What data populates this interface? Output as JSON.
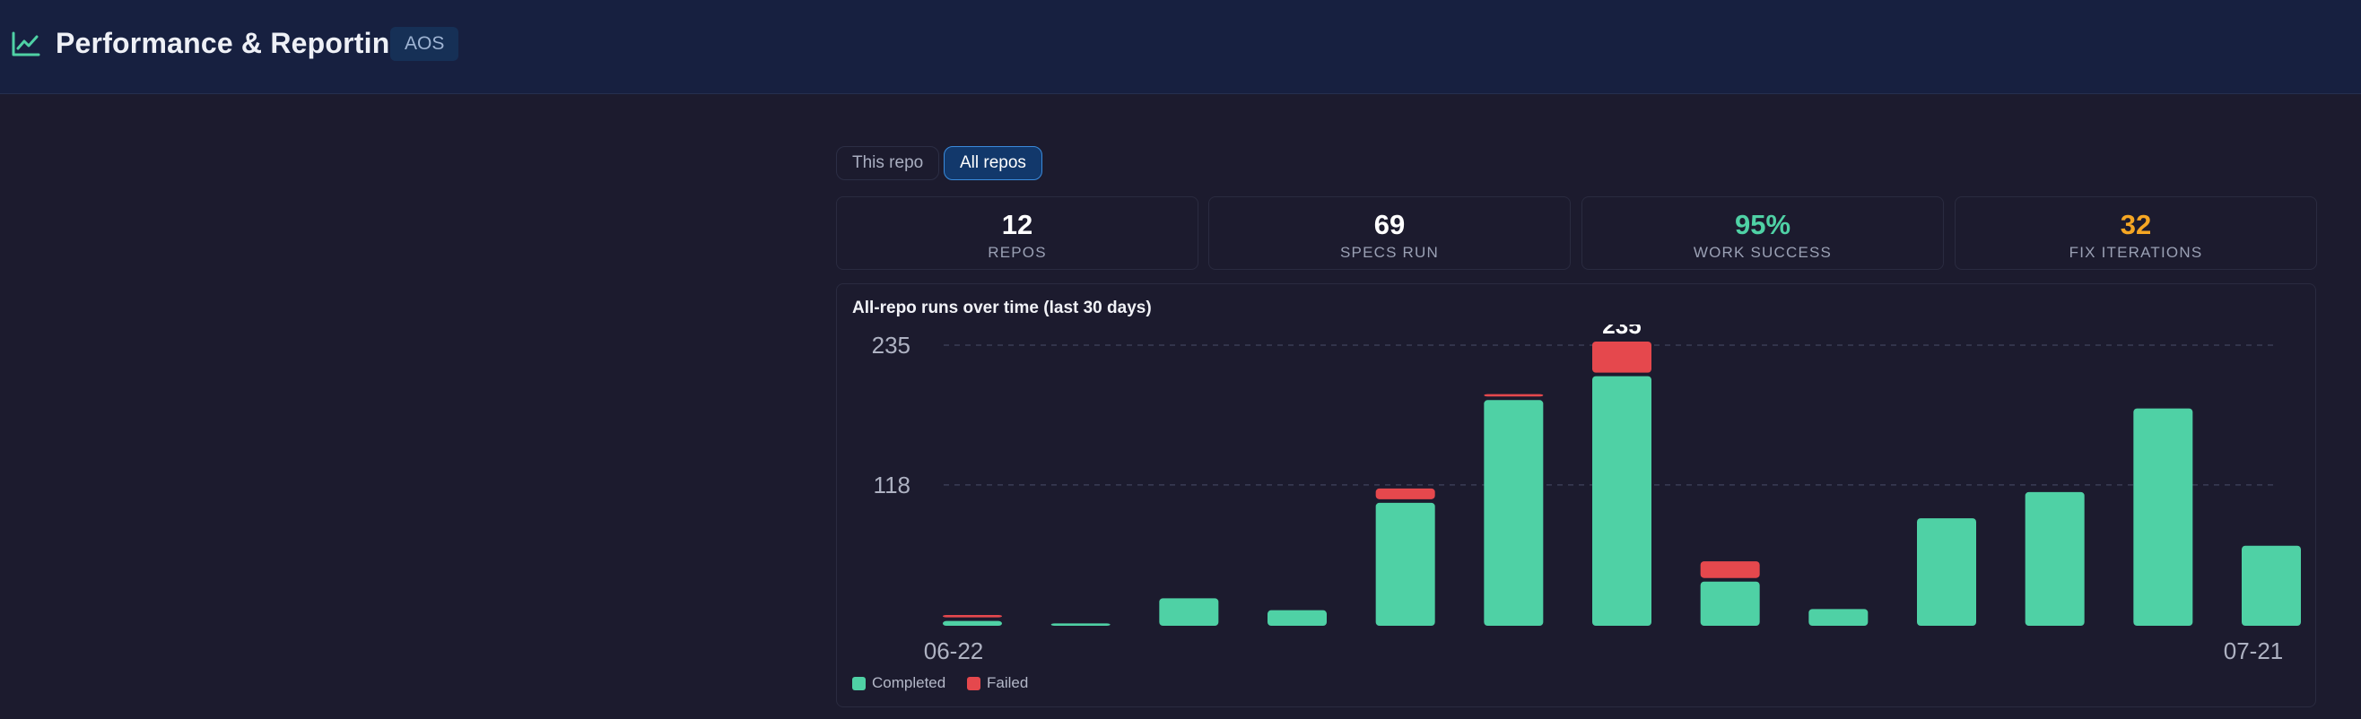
{
  "header": {
    "title": "Performance & Reporting",
    "badge": "AOS",
    "icon": "line-chart-icon",
    "accent": "#4fd1a5"
  },
  "scope_toggle": {
    "options": [
      "This repo",
      "All repos"
    ],
    "selected": "All repos"
  },
  "stats": [
    {
      "value": "12",
      "label": "REPOS",
      "color": "#ffffff"
    },
    {
      "value": "69",
      "label": "SPECS RUN",
      "color": "#ffffff"
    },
    {
      "value": "95%",
      "label": "WORK SUCCESS",
      "color": "#4fd1a5"
    },
    {
      "value": "32",
      "label": "FIX ITERATIONS",
      "color": "#f5a623"
    }
  ],
  "chart_data": {
    "type": "bar",
    "stacked": true,
    "title": "All-repo runs over time (last 30 days)",
    "ylim": [
      0,
      235
    ],
    "y_ticks": [
      "235",
      "118"
    ],
    "x_tick_labels": [
      "06-22",
      "07-21"
    ],
    "bar_count": 13,
    "series": [
      {
        "name": "Completed",
        "color": "#4fd1a5",
        "values": [
          4,
          2,
          23,
          13,
          103,
          189,
          209,
          37,
          14,
          90,
          112,
          182,
          67
        ]
      },
      {
        "name": "Failed",
        "color": "#e5484d",
        "values": [
          2,
          0,
          0,
          0,
          9,
          2,
          26,
          14,
          0,
          0,
          0,
          0,
          0
        ]
      }
    ],
    "peak_label": "235",
    "grid": "dashed horizontal",
    "legend": "bottom-left"
  }
}
